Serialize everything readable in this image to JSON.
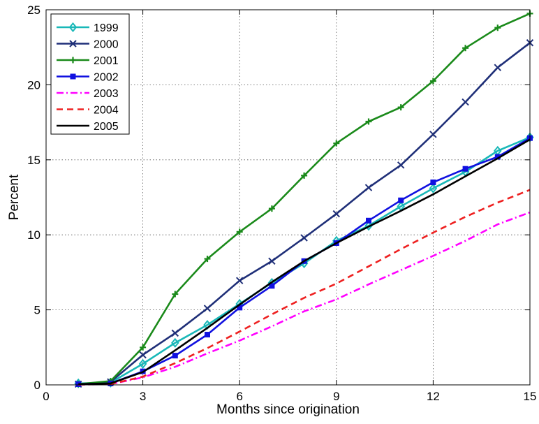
{
  "chart_data": {
    "type": "line",
    "title": "",
    "xlabel": "Months since origination",
    "ylabel": "Percent",
    "xlim": [
      0,
      15
    ],
    "ylim": [
      0,
      25
    ],
    "xticks": [
      0,
      3,
      6,
      9,
      12,
      15
    ],
    "yticks": [
      0,
      5,
      10,
      15,
      20,
      25
    ],
    "grid": true,
    "legend_position": "top-left",
    "series": [
      {
        "name": "1999",
        "color": "#19b8b8",
        "dash": "solid",
        "marker": "diamond",
        "x": [
          1,
          2,
          3,
          4,
          5,
          6,
          7,
          8,
          9,
          10,
          11,
          12,
          13,
          14,
          15
        ],
        "y": [
          0.1,
          0.15,
          1.4,
          2.8,
          4.0,
          5.4,
          6.8,
          8.1,
          9.6,
          10.6,
          11.9,
          13.1,
          14.2,
          15.6,
          16.5
        ]
      },
      {
        "name": "2000",
        "color": "#1f2f78",
        "dash": "solid",
        "marker": "x",
        "x": [
          1,
          2,
          3,
          4,
          5,
          6,
          7,
          8,
          9,
          10,
          11,
          12,
          13,
          14,
          15
        ],
        "y": [
          0.05,
          0.2,
          2.0,
          3.45,
          5.1,
          6.95,
          8.25,
          9.8,
          11.4,
          13.15,
          14.65,
          16.7,
          18.85,
          21.15,
          22.8
        ]
      },
      {
        "name": "2001",
        "color": "#1a8a1a",
        "dash": "solid",
        "marker": "plus",
        "x": [
          1,
          2,
          3,
          4,
          5,
          6,
          7,
          8,
          9,
          10,
          11,
          12,
          13,
          14,
          15
        ],
        "y": [
          0.05,
          0.25,
          2.5,
          6.05,
          8.4,
          10.2,
          11.75,
          13.95,
          16.1,
          17.55,
          18.5,
          20.25,
          22.45,
          23.8,
          24.75
        ]
      },
      {
        "name": "2002",
        "color": "#1010e0",
        "dash": "solid",
        "marker": "square",
        "x": [
          1,
          2,
          3,
          4,
          5,
          6,
          7,
          8,
          9,
          10,
          11,
          12,
          13,
          14,
          15
        ],
        "y": [
          0.05,
          0.1,
          0.9,
          1.95,
          3.35,
          5.15,
          6.6,
          8.25,
          9.45,
          10.95,
          12.3,
          13.5,
          14.4,
          15.2,
          16.45
        ]
      },
      {
        "name": "2003",
        "color": "#ff00ff",
        "dash": "dashdot",
        "marker": "none",
        "x": [
          1,
          2,
          3,
          4,
          5,
          6,
          7,
          8,
          9,
          10,
          11,
          12,
          13,
          14,
          15
        ],
        "y": [
          0.02,
          0.05,
          0.5,
          1.2,
          2.1,
          2.95,
          3.9,
          4.9,
          5.7,
          6.7,
          7.65,
          8.6,
          9.6,
          10.7,
          11.5
        ]
      },
      {
        "name": "2004",
        "color": "#ee2020",
        "dash": "dashed",
        "marker": "none",
        "x": [
          1,
          2,
          3,
          4,
          5,
          6,
          7,
          8,
          9,
          10,
          11,
          12,
          13,
          14,
          15
        ],
        "y": [
          0.02,
          0.05,
          0.55,
          1.45,
          2.45,
          3.55,
          4.7,
          5.8,
          6.75,
          7.9,
          9.05,
          10.15,
          11.2,
          12.15,
          13.0
        ]
      },
      {
        "name": "2005",
        "color": "#000000",
        "dash": "solid",
        "marker": "none",
        "x": [
          1,
          2,
          3,
          4,
          5,
          6,
          7,
          8,
          9,
          10,
          11,
          12,
          13,
          14,
          15
        ],
        "y": [
          0.05,
          0.1,
          0.85,
          2.3,
          3.8,
          5.35,
          6.85,
          8.25,
          9.45,
          10.55,
          11.6,
          12.7,
          13.9,
          15.1,
          16.35
        ]
      }
    ]
  }
}
